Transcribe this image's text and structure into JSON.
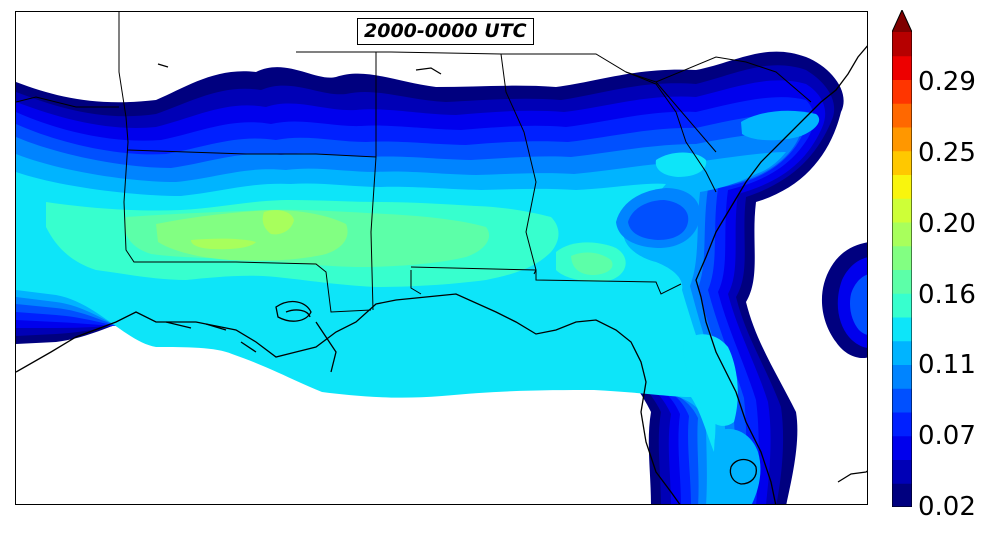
{
  "title": "2000-0000 UTC",
  "colorbar": {
    "extend": "max",
    "tick_labels": [
      "0.02",
      "0.07",
      "0.11",
      "0.16",
      "0.20",
      "0.25",
      "0.29"
    ],
    "tick_values": [
      0.02,
      0.07,
      0.11,
      0.16,
      0.2,
      0.25,
      0.29
    ],
    "levels": [
      0.02,
      0.0345,
      0.049,
      0.0635,
      0.078,
      0.0925,
      0.107,
      0.1215,
      0.136,
      0.1505,
      0.165,
      0.1795,
      0.194,
      0.2085,
      0.223,
      0.2375,
      0.252,
      0.2665,
      0.281,
      0.2955,
      0.31
    ],
    "colors": [
      "#00007f",
      "#0000b6",
      "#0000ed",
      "#0020ff",
      "#0050ff",
      "#0084ff",
      "#00b4ff",
      "#0de5f9",
      "#37ffce",
      "#5cffa8",
      "#82ff82",
      "#a8ff5c",
      "#ceff37",
      "#f9f50d",
      "#ffc800",
      "#ff9700",
      "#ff6800",
      "#ff3500",
      "#ed0000",
      "#b60000"
    ],
    "extend_color": "#7f0000"
  },
  "map": {
    "region": "Southeastern United States",
    "projection": "cylindrical",
    "field_colormap": "jet"
  }
}
